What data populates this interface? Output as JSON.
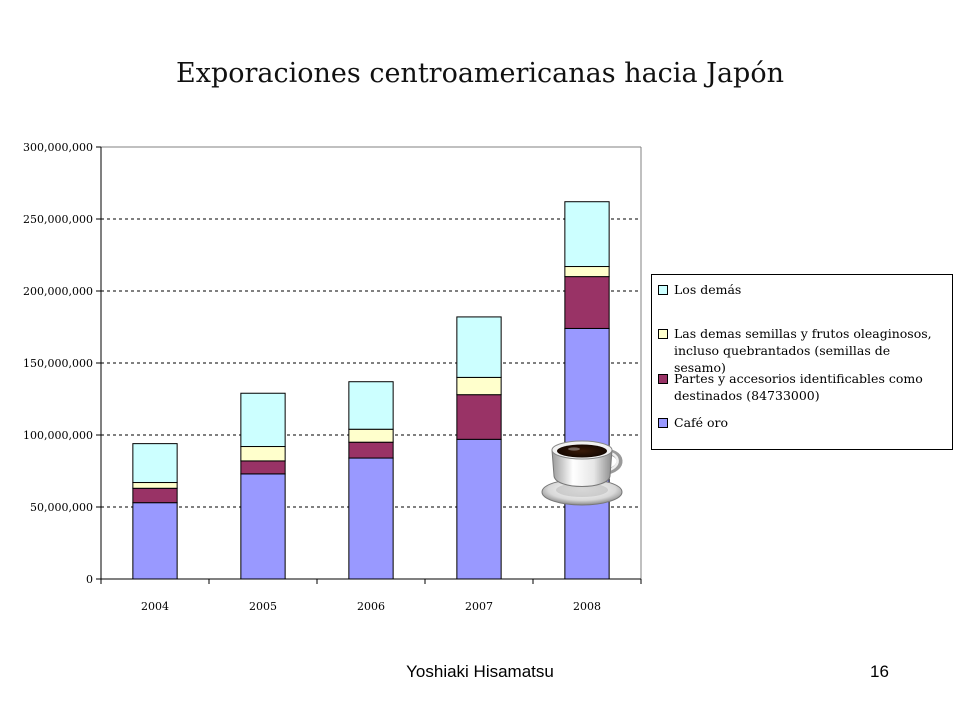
{
  "slide": {
    "author": "Yoshiaki Hisamatsu",
    "page_number": "16",
    "decoration_icon": "coffee-cup-icon"
  },
  "chart_data": {
    "type": "bar",
    "stacked": true,
    "title": "Exporaciones centroamericanas hacia Japón",
    "xlabel": "",
    "ylabel": "",
    "categories": [
      "2004",
      "2005",
      "2006",
      "2007",
      "2008"
    ],
    "ylim": [
      0,
      300000000
    ],
    "yticks": [
      0,
      50000000,
      100000000,
      150000000,
      200000000,
      250000000,
      300000000
    ],
    "ytick_labels": [
      "0",
      "50,000,000",
      "100,000,000",
      "150,000,000",
      "200,000,000",
      "250,000,000",
      "300,000,000"
    ],
    "grid": "horizontal-dashed",
    "legend_position": "right",
    "series": [
      {
        "name": "Café oro",
        "color": "#9999ff",
        "values": [
          53000000,
          73000000,
          84000000,
          97000000,
          174000000
        ]
      },
      {
        "name": "Partes y accesorios identificables como destinados (84733000)",
        "color": "#993366",
        "values": [
          10000000,
          9000000,
          11000000,
          31000000,
          36000000
        ]
      },
      {
        "name": "Las demas semillas y frutos oleaginosos, incluso quebrantados (semillas de sesamo)",
        "color": "#ffffcc",
        "values": [
          4000000,
          10000000,
          9000000,
          12000000,
          7000000
        ]
      },
      {
        "name": "Los demás",
        "color": "#ccffff",
        "values": [
          27000000,
          37000000,
          33000000,
          42000000,
          45000000
        ]
      }
    ]
  }
}
